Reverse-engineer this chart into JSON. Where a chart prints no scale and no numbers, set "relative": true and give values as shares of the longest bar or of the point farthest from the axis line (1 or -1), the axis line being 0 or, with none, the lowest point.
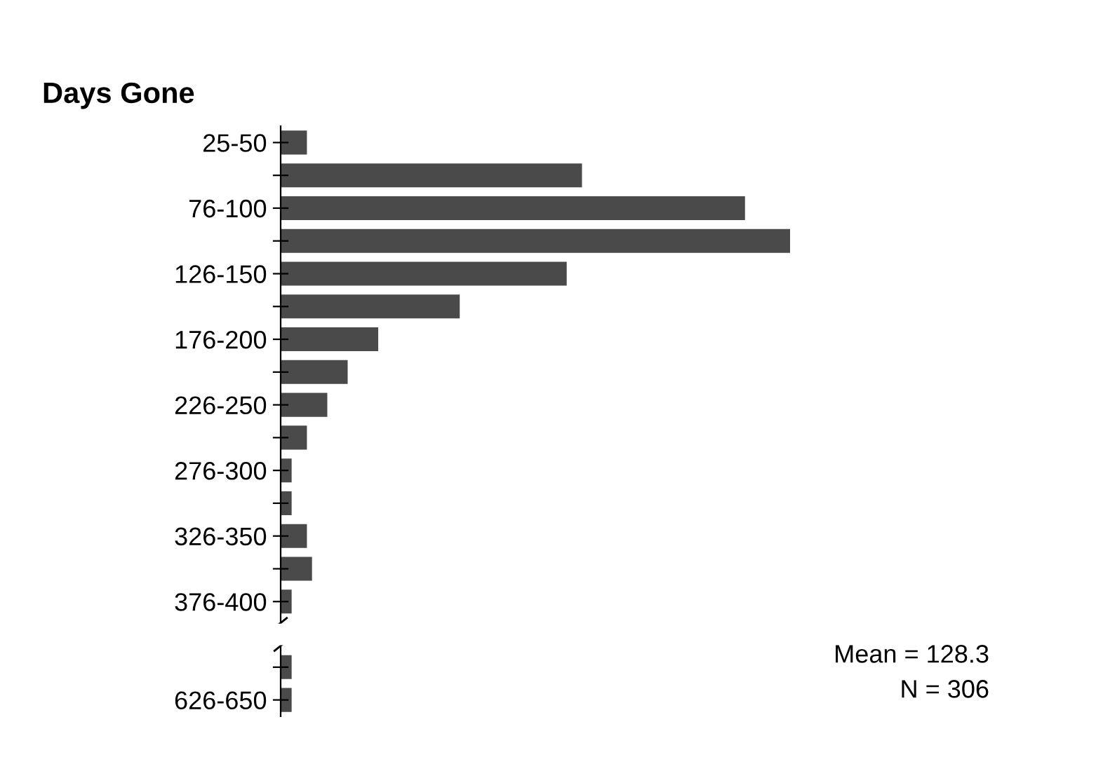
{
  "chart_data": {
    "type": "bar",
    "orientation": "horizontal",
    "relative": true,
    "ylabel": "Days Gone",
    "categories": [
      "25-50",
      null,
      "76-100",
      null,
      "126-150",
      null,
      "176-200",
      null,
      "226-250",
      null,
      "276-300",
      null,
      "326-350",
      null,
      "376-400",
      null,
      null,
      "626-650"
    ],
    "values": [
      0.05,
      0.59,
      0.91,
      1,
      0.56,
      0.35,
      0.19,
      0.13,
      0.09,
      0.05,
      0.02,
      0.02,
      0.05,
      0.06,
      0.02,
      null,
      0.02,
      0.02
    ],
    "color": "#4a4a4a",
    "annotations": [
      "Mean = 128.3",
      "N = 306"
    ]
  }
}
